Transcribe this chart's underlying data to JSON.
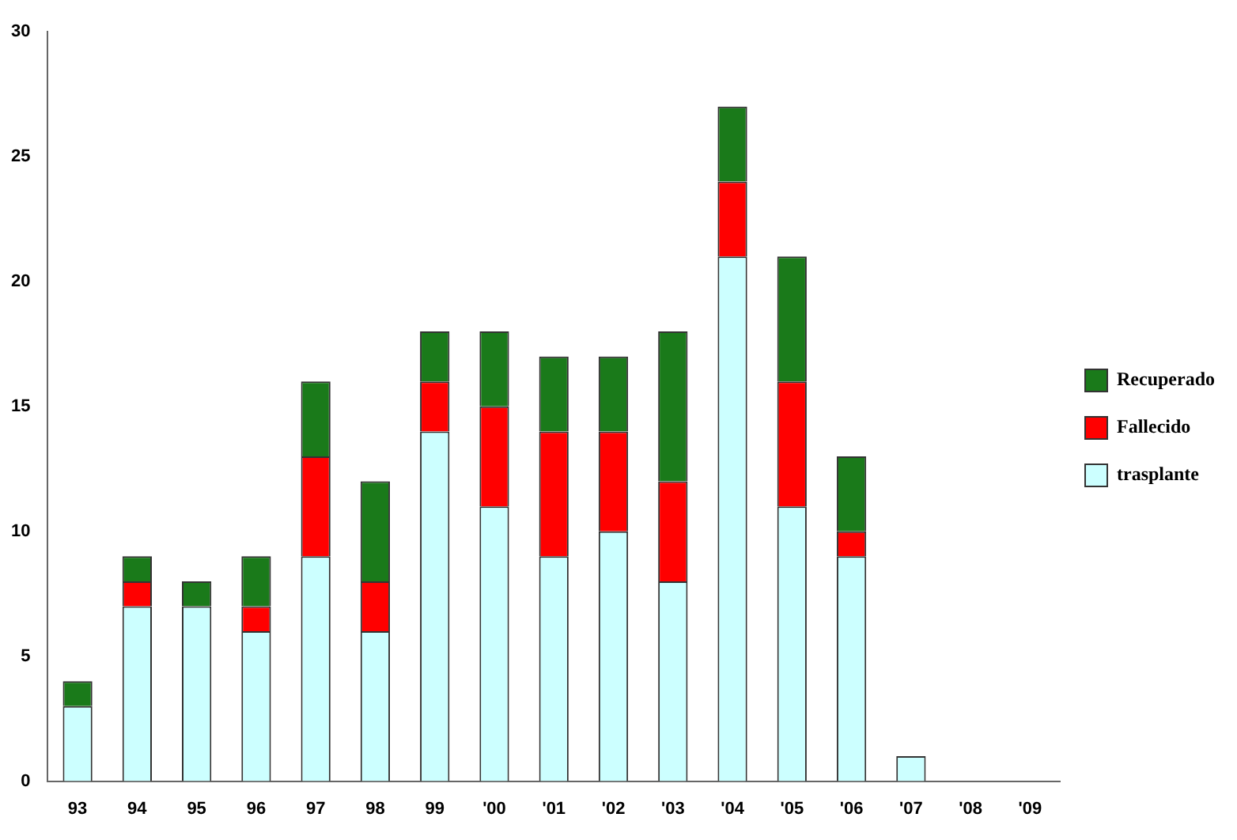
{
  "chart_data": {
    "type": "bar",
    "stacked": true,
    "categories": [
      "93",
      "94",
      "95",
      "96",
      "97",
      "98",
      "99",
      "'00",
      "'01",
      "'02",
      "'03",
      "'04",
      "'05",
      "'06",
      "'07",
      "'08",
      "'09"
    ],
    "series": [
      {
        "name": "trasplante",
        "color": "#ccffff",
        "values": [
          3,
          7,
          7,
          6,
          9,
          6,
          14,
          11,
          9,
          10,
          8,
          21,
          11,
          9,
          1,
          0,
          0
        ]
      },
      {
        "name": "Fallecido",
        "color": "#ff0000",
        "values": [
          0,
          1,
          0,
          1,
          4,
          2,
          2,
          4,
          5,
          4,
          4,
          3,
          5,
          1,
          0,
          0,
          0
        ]
      },
      {
        "name": "Recuperado",
        "color": "#1a7a1a",
        "values": [
          1,
          1,
          1,
          2,
          3,
          4,
          2,
          3,
          3,
          3,
          6,
          3,
          5,
          3,
          0,
          0,
          0
        ]
      }
    ],
    "ylim": [
      0,
      30
    ],
    "yticks": [
      0,
      5,
      10,
      15,
      20,
      25,
      30
    ],
    "grid": false,
    "legend": "right"
  }
}
